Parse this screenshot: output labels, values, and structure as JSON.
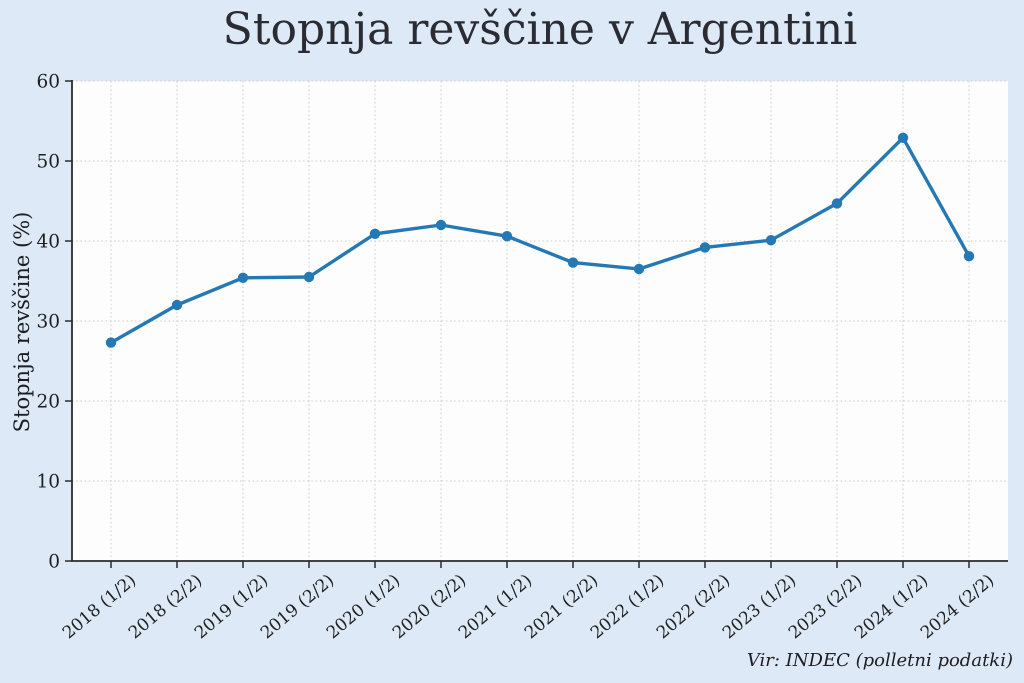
{
  "chart_data": {
    "type": "line",
    "title": "Stopnja revščine v Argentini",
    "ylabel": "Stopnja revščine (%)",
    "xlabel": "",
    "source_note": "Vir: INDEC (polletni podatki)",
    "categories": [
      "2018 (1/2)",
      "2018 (2/2)",
      "2019 (1/2)",
      "2019 (2/2)",
      "2020 (1/2)",
      "2020 (2/2)",
      "2021 (1/2)",
      "2021 (2/2)",
      "2022 (1/2)",
      "2022 (2/2)",
      "2023 (1/2)",
      "2023 (2/2)",
      "2024 (1/2)",
      "2024 (2/2)"
    ],
    "values": [
      27.3,
      32.0,
      35.4,
      35.5,
      40.9,
      42.0,
      40.6,
      37.3,
      36.5,
      39.2,
      40.1,
      44.7,
      52.9,
      38.1
    ],
    "ylim": [
      0,
      60
    ],
    "yticks": [
      0,
      10,
      20,
      30,
      40,
      50,
      60
    ],
    "grid": true,
    "grid_style": "dotted",
    "legend": "none",
    "marker": "circle",
    "colors": {
      "line": "#2478b4",
      "page_background": "#dde9f6",
      "plot_background": "#fdfdfe",
      "grid": "#c9c9c9",
      "spine": "#2a2a2a",
      "tick_text": "#1f1f1f",
      "title_text": "#2b2b33"
    }
  }
}
